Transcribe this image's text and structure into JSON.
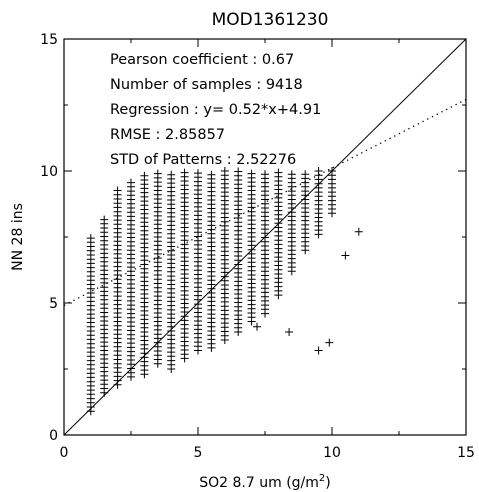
{
  "chart_data": {
    "type": "scatter",
    "title": "MOD1361230",
    "xlabel_main": "SO2 8.7 um (g/m",
    "xlabel_sup": "2",
    "xlabel_tail": ")",
    "ylabel": "NN 28 ins",
    "xlim": [
      0,
      15
    ],
    "ylim": [
      0,
      15
    ],
    "xticks": [
      0,
      5,
      10,
      15
    ],
    "yticks": [
      0,
      5,
      10,
      15
    ],
    "xtick_labels": [
      "0",
      "5",
      "10",
      "15"
    ],
    "ytick_labels": [
      "0",
      "5",
      "10",
      "15"
    ],
    "annotations": [
      "Pearson coefficient : 0.67",
      "Number of samples : 9418",
      "Regression : y= 0.52*x+4.91",
      "RMSE : 2.85857",
      "STD of Patterns : 2.52276"
    ],
    "reference_line": {
      "style": "solid",
      "slope": 1,
      "intercept": 0
    },
    "regression_line": {
      "style": "dotted",
      "slope": 0.52,
      "intercept": 4.91
    },
    "columns": [
      {
        "x": 1.0,
        "ymin": 0.9,
        "ymax": 7.6
      },
      {
        "x": 1.5,
        "ymin": 1.6,
        "ymax": 8.3
      },
      {
        "x": 2.0,
        "ymin": 1.9,
        "ymax": 9.4
      },
      {
        "x": 2.5,
        "ymin": 2.2,
        "ymax": 9.7
      },
      {
        "x": 3.0,
        "ymin": 2.3,
        "ymax": 9.9
      },
      {
        "x": 3.5,
        "ymin": 2.7,
        "ymax": 10.0
      },
      {
        "x": 4.0,
        "ymin": 2.5,
        "ymax": 10.0
      },
      {
        "x": 4.5,
        "ymin": 2.9,
        "ymax": 10.0
      },
      {
        "x": 5.0,
        "ymin": 3.2,
        "ymax": 10.0
      },
      {
        "x": 5.5,
        "ymin": 3.3,
        "ymax": 10.0
      },
      {
        "x": 6.0,
        "ymin": 3.6,
        "ymax": 10.0
      },
      {
        "x": 6.5,
        "ymin": 3.9,
        "ymax": 10.0
      },
      {
        "x": 7.0,
        "ymin": 4.3,
        "ymax": 10.0
      },
      {
        "x": 7.5,
        "ymin": 4.6,
        "ymax": 10.0
      },
      {
        "x": 8.0,
        "ymin": 5.3,
        "ymax": 10.0
      },
      {
        "x": 8.5,
        "ymin": 6.2,
        "ymax": 10.0
      },
      {
        "x": 9.0,
        "ymin": 7.0,
        "ymax": 10.0
      },
      {
        "x": 9.5,
        "ymin": 7.6,
        "ymax": 10.0
      },
      {
        "x": 10.0,
        "ymin": 8.4,
        "ymax": 10.0
      }
    ],
    "outliers": [
      {
        "x": 9.5,
        "y": 3.2
      },
      {
        "x": 9.9,
        "y": 3.5
      },
      {
        "x": 8.4,
        "y": 3.9
      },
      {
        "x": 7.2,
        "y": 4.1
      },
      {
        "x": 10.5,
        "y": 6.8
      },
      {
        "x": 11.0,
        "y": 7.7
      }
    ]
  }
}
